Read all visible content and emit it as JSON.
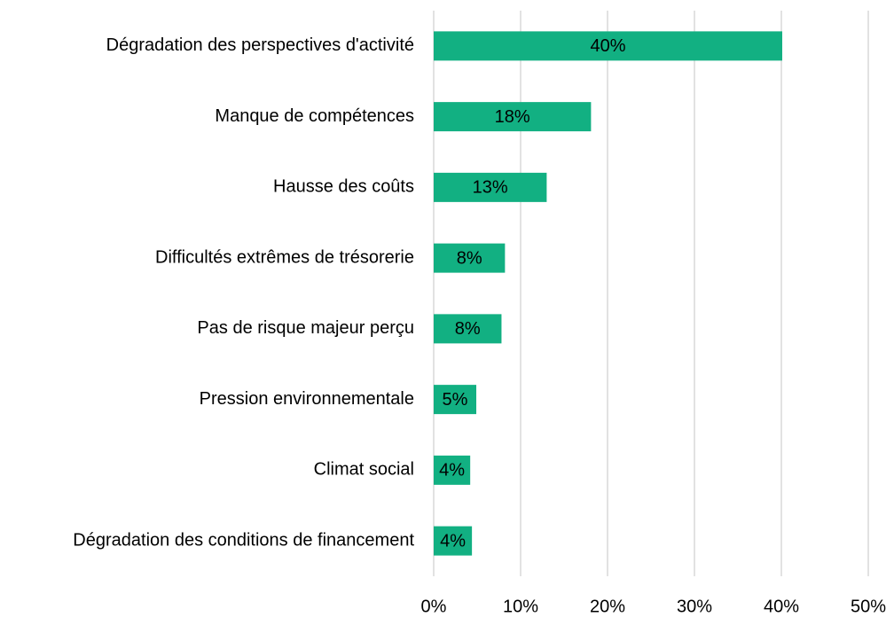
{
  "chart_data": {
    "type": "barh",
    "categories": [
      "Dégradation des perspectives d'activité",
      "Manque de compétences",
      "Hausse des coûts",
      "Difficultés extrêmes de trésorerie",
      "Pas de risque majeur perçu",
      "Pression environnementale",
      "Climat social",
      "Dégradation des conditions de financement"
    ],
    "values": [
      40.1,
      18.1,
      13,
      8.2,
      7.8,
      4.9,
      4.2,
      4.4
    ],
    "value_labels": [
      "40%",
      "18%",
      "13%",
      "8%",
      "8%",
      "5%",
      "4%",
      "4%"
    ],
    "color": "#12b082",
    "xlim": [
      0,
      50
    ],
    "xticks": [
      {
        "value": 0,
        "label": "0%"
      },
      {
        "value": 10,
        "label": "10%"
      },
      {
        "value": 20,
        "label": "20%"
      },
      {
        "value": 30,
        "label": "30%"
      },
      {
        "value": 40,
        "label": "40%"
      },
      {
        "value": 50,
        "label": "50%"
      }
    ],
    "grid": true
  }
}
